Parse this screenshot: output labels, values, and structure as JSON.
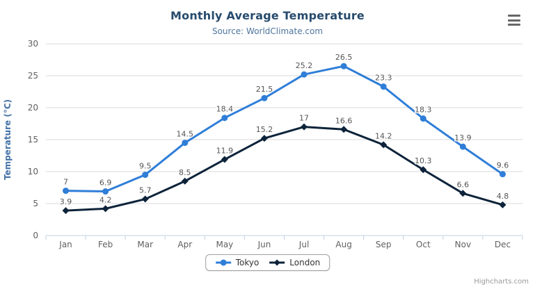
{
  "chart": {
    "credit": "Highcharts.com",
    "menu_icon": "hamburger-icon"
  },
  "chart_data": {
    "type": "line",
    "title": "Monthly Average Temperature",
    "subtitle": "Source: WorldClimate.com",
    "categories": [
      "Jan",
      "Feb",
      "Mar",
      "Apr",
      "May",
      "Jun",
      "Jul",
      "Aug",
      "Sep",
      "Oct",
      "Nov",
      "Dec"
    ],
    "series": [
      {
        "name": "Tokyo",
        "color": "#2f7ed8",
        "marker": "circle",
        "values": [
          7,
          6.9,
          9.5,
          14.5,
          18.4,
          21.5,
          25.2,
          26.5,
          23.3,
          18.3,
          13.9,
          9.6
        ]
      },
      {
        "name": "London",
        "color": "#0d233a",
        "marker": "diamond",
        "values": [
          3.9,
          4.2,
          5.7,
          8.5,
          11.9,
          15.2,
          17,
          16.6,
          14.2,
          10.3,
          6.6,
          4.8
        ]
      }
    ],
    "xlabel": "",
    "ylabel": "Temperature (°C)",
    "ylim": [
      0,
      30
    ],
    "yticks": [
      0,
      5,
      10,
      15,
      20,
      25,
      30
    ],
    "grid": true,
    "legend_position": "bottom",
    "data_labels": true
  },
  "colors": {
    "title": "#274b6d",
    "subtitle": "#4d759e",
    "grid_line": "#d8d8d8",
    "axis_line": "#c0d0e0",
    "axis_label": "#606060",
    "y_axis_title": "#4572a7",
    "data_label": "#555555",
    "legend_border": "#a0a0a0",
    "credit": "#999999",
    "menu_icon": "#666666"
  }
}
